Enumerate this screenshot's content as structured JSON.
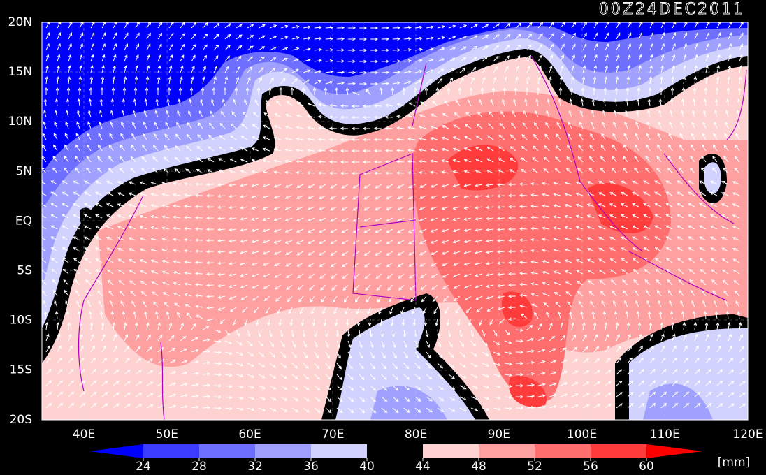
{
  "title": "00Z24DEC2011",
  "lat_labels": [
    "20N",
    "15N",
    "10N",
    "5N",
    "EQ",
    "5S",
    "10S",
    "15S",
    "20S"
  ],
  "lon_labels": [
    "40E",
    "50E",
    "60E",
    "70E",
    "80E",
    "90E",
    "100E",
    "110E",
    "120E"
  ],
  "colorbar": {
    "ticks": [
      24,
      28,
      32,
      36,
      40,
      44,
      48,
      52,
      56,
      60
    ],
    "colors": [
      "#0000ff",
      "#3c3cff",
      "#6e6eff",
      "#a0a0ff",
      "#d2d2ff",
      "#000000",
      "#ffd2d2",
      "#ffa0a0",
      "#ff6e6e",
      "#ff3c3c",
      "#ff0000"
    ],
    "unit": "[mm]"
  }
}
